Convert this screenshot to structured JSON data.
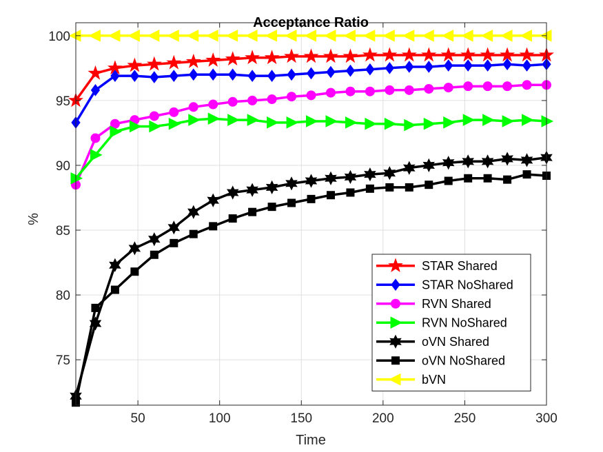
{
  "chart_data": {
    "type": "line",
    "title": "Acceptance Ratio",
    "xlabel": "Time",
    "ylabel": "%",
    "xlim": [
      12,
      300
    ],
    "ylim": [
      71.5,
      101
    ],
    "xticks": [
      50,
      100,
      150,
      200,
      250,
      300
    ],
    "yticks": [
      75,
      80,
      85,
      90,
      95,
      100
    ],
    "grid": true,
    "legend_position": "bottom-right",
    "x": [
      12,
      24,
      36,
      48,
      60,
      72,
      84,
      96,
      108,
      120,
      132,
      144,
      156,
      168,
      180,
      192,
      204,
      216,
      228,
      240,
      252,
      264,
      276,
      288,
      300
    ],
    "series": [
      {
        "name": "STAR Shared",
        "color": "#ff0000",
        "marker": "star",
        "values": [
          95.0,
          97.1,
          97.5,
          97.7,
          97.8,
          97.9,
          98.0,
          98.1,
          98.2,
          98.3,
          98.3,
          98.4,
          98.4,
          98.4,
          98.4,
          98.5,
          98.5,
          98.5,
          98.5,
          98.5,
          98.5,
          98.5,
          98.5,
          98.5,
          98.5
        ]
      },
      {
        "name": "STAR NoShared",
        "color": "#0000ff",
        "marker": "diamond",
        "values": [
          93.3,
          95.8,
          96.9,
          96.9,
          96.8,
          96.9,
          97.0,
          97.0,
          97.0,
          96.9,
          96.9,
          97.0,
          97.1,
          97.2,
          97.3,
          97.4,
          97.5,
          97.6,
          97.6,
          97.7,
          97.7,
          97.7,
          97.8,
          97.7,
          97.8
        ]
      },
      {
        "name": "RVN Shared",
        "color": "#ff00ff",
        "marker": "circle",
        "values": [
          88.5,
          92.1,
          93.2,
          93.5,
          93.8,
          94.1,
          94.5,
          94.7,
          94.9,
          95.0,
          95.1,
          95.3,
          95.4,
          95.6,
          95.7,
          95.7,
          95.8,
          95.8,
          95.9,
          96.0,
          96.1,
          96.1,
          96.1,
          96.2,
          96.2
        ]
      },
      {
        "name": "RVN NoShared",
        "color": "#00ff00",
        "marker": "triangle-right",
        "values": [
          89.0,
          90.8,
          92.6,
          93.0,
          93.0,
          93.2,
          93.5,
          93.6,
          93.5,
          93.5,
          93.3,
          93.3,
          93.4,
          93.4,
          93.3,
          93.2,
          93.2,
          93.1,
          93.2,
          93.3,
          93.5,
          93.5,
          93.4,
          93.5,
          93.4
        ]
      },
      {
        "name": "oVN Shared",
        "color": "#000000",
        "marker": "hexagram",
        "values": [
          72.2,
          77.8,
          82.3,
          83.6,
          84.3,
          85.2,
          86.4,
          87.3,
          87.9,
          88.1,
          88.3,
          88.6,
          88.8,
          89.0,
          89.1,
          89.3,
          89.4,
          89.8,
          90.0,
          90.2,
          90.3,
          90.3,
          90.5,
          90.4,
          90.6
        ]
      },
      {
        "name": "oVN NoShared",
        "color": "#000000",
        "marker": "square",
        "values": [
          71.7,
          79.0,
          80.4,
          81.8,
          83.1,
          84.0,
          84.7,
          85.3,
          85.9,
          86.4,
          86.8,
          87.1,
          87.4,
          87.7,
          87.9,
          88.2,
          88.3,
          88.3,
          88.5,
          88.8,
          89.0,
          89.0,
          88.9,
          89.3,
          89.2
        ]
      },
      {
        "name": "bVN",
        "color": "#ffff00",
        "marker": "triangle-left",
        "values": [
          100,
          100,
          100,
          100,
          100,
          100,
          100,
          100,
          100,
          100,
          100,
          100,
          100,
          100,
          100,
          100,
          100,
          100,
          100,
          100,
          100,
          100,
          100,
          100,
          100
        ]
      }
    ]
  }
}
